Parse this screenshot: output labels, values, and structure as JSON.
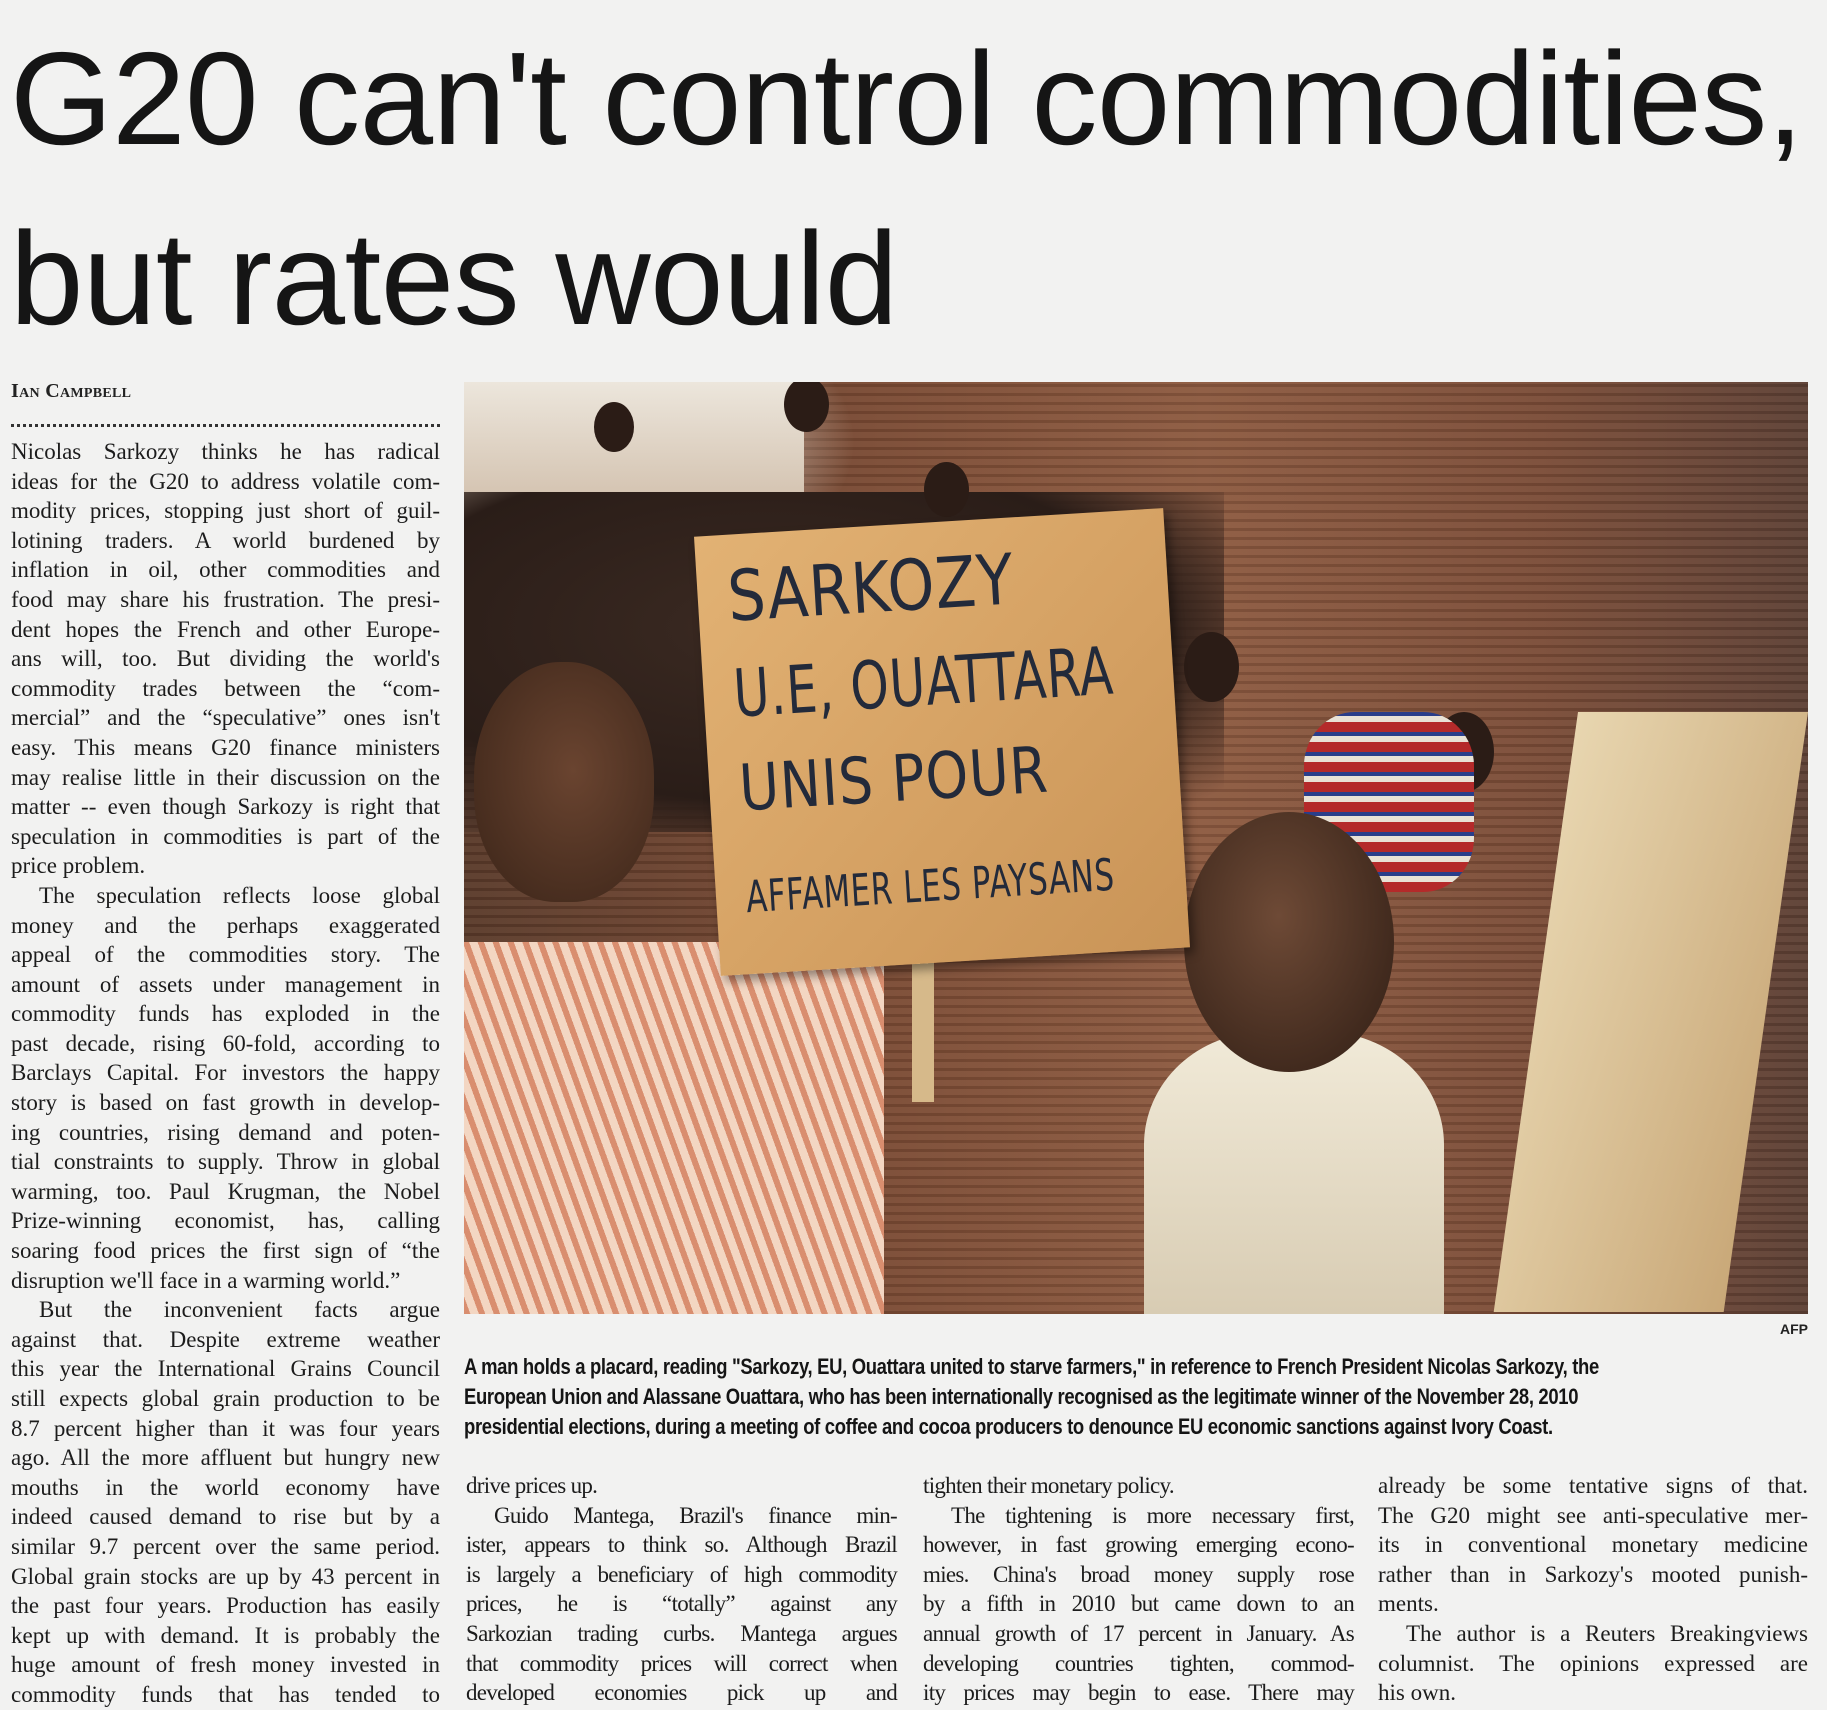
{
  "headline": {
    "lines": [
      "G20 can't control commodities,",
      "but rates would"
    ]
  },
  "byline": "Ian Campbell",
  "photo": {
    "placard_lines": [
      "SARKOZY",
      "U.E, OUATTARA",
      "UNIS POUR",
      "AFFAMER LES PAYSANS"
    ],
    "credit": "AFP",
    "caption_lines": [
      "A man holds a placard, reading \"Sarkozy, EU, Ouattara united to starve farmers,\" in reference to French President Nicolas Sarkozy, the",
      "European Union and Alassane Ouattara, who has been internationally recognised as the legitimate winner of the November 28, 2010",
      "presidential elections, during a meeting of coffee and cocoa producers to denounce EU economic sanctions against Ivory Coast."
    ]
  },
  "columns": [
    {
      "paragraphs": [
        {
          "indent": false,
          "lines": [
            "Nicolas Sarkozy thinks he has radical",
            "ideas for the G20 to address volatile com-",
            "modity prices, stopping just short of guil-",
            "lotining traders. A world burdened by",
            "inflation in oil, other commodities and",
            "food may share his frustration. The presi-",
            "dent hopes the French and other Europe-",
            "ans will, too. But dividing the world's",
            "commodity trades between the “com-",
            "mercial” and the “speculative” ones isn't",
            "easy. This means G20 finance ministers",
            "may realise little in their discussion on the",
            "matter -- even though Sarkozy is right that",
            "speculation in commodities is part of the",
            "price problem."
          ]
        },
        {
          "indent": true,
          "lines": [
            "The speculation reflects loose global",
            "money and the perhaps exaggerated",
            "appeal of the commodities story. The",
            "amount of assets under management in",
            "commodity funds has exploded in the",
            "past decade, rising 60-fold, according to",
            "Barclays Capital. For investors the happy",
            "story is based on fast growth in develop-",
            "ing countries, rising demand and poten-",
            "tial constraints to supply. Throw in global",
            "warming, too. Paul Krugman, the Nobel",
            "Prize-winning economist, has, calling",
            "soaring food prices the first sign of “the",
            "disruption we'll face in a warming world.”"
          ]
        },
        {
          "indent": true,
          "continues": true,
          "lines": [
            "But the inconvenient facts argue",
            "against that. Despite extreme weather",
            "this year the International Grains Council",
            "still expects global grain production to be",
            "8.7 percent higher than it was four years",
            "ago. All the more affluent but hungry new",
            "mouths in the world economy have",
            "indeed caused demand to rise  but by a",
            "similar 9.7 percent over the same period.",
            "Global grain stocks are up by 43 percent in",
            "the past four years. Production has easily",
            "kept up with demand. It is probably the",
            "huge amount of fresh money invested in",
            "commodity funds that has tended to"
          ]
        }
      ]
    },
    {
      "paragraphs": [
        {
          "indent": false,
          "lines": [
            "drive prices up."
          ]
        },
        {
          "indent": true,
          "continues": true,
          "lines": [
            "Guido Mantega, Brazil's finance min-",
            "ister, appears to think so. Although Brazil",
            "is largely a beneficiary of high commodity",
            "prices, he is “totally” against any",
            "Sarkozian trading curbs. Mantega argues",
            "that commodity prices will correct when",
            "developed economies pick up and"
          ]
        }
      ]
    },
    {
      "paragraphs": [
        {
          "indent": false,
          "lines": [
            "tighten their monetary policy."
          ]
        },
        {
          "indent": true,
          "continues": true,
          "lines": [
            "The tightening is more necessary first,",
            "however, in fast growing emerging econo-",
            "mies. China's broad money supply rose",
            "by a fifth in 2010 but came down to an",
            "annual growth of 17 percent in January. As",
            "developing countries tighten, commod-",
            "ity prices may begin to ease. There may"
          ]
        }
      ]
    },
    {
      "paragraphs": [
        {
          "indent": false,
          "lines": [
            "already be some tentative signs of that.",
            "The G20 might see anti-speculative mer-",
            "its in conventional monetary medicine",
            "rather than in Sarkozy's mooted punish-",
            "ments."
          ]
        },
        {
          "indent": true,
          "lines": [
            "The author is a Reuters Breakingviews",
            "columnist. The opinions expressed are",
            "his own."
          ]
        }
      ]
    }
  ]
}
